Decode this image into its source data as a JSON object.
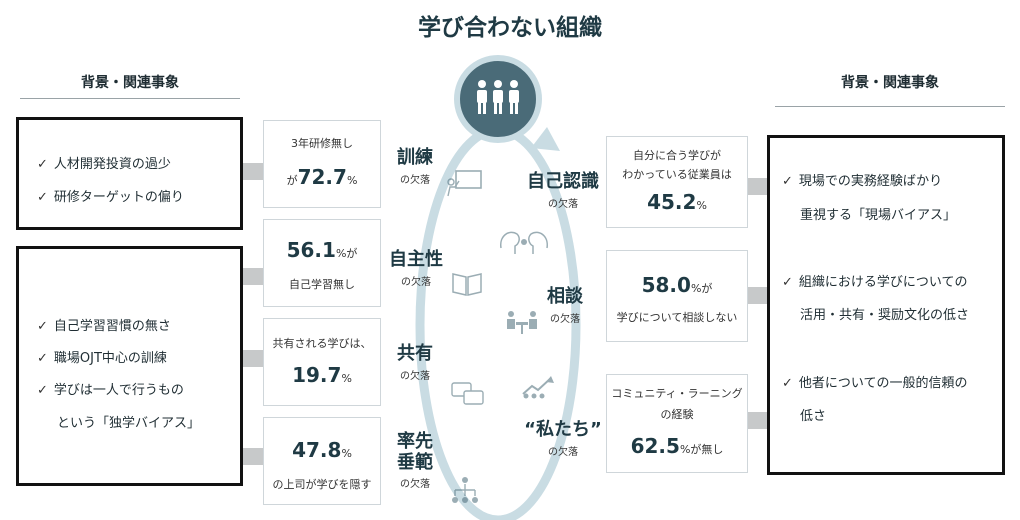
{
  "title": "学び合わない組織",
  "left_header": "背景・関連事象",
  "right_header": "背景・関連事象",
  "left_boxes": [
    {
      "items": [
        "人材開発投資の過少",
        "研修ターゲットの偏り"
      ]
    },
    {
      "items": [
        "自己学習習慣の無さ",
        "職場OJT中心の訓練",
        "学びは一人で行うもの",
        "という「独学バイアス」"
      ]
    }
  ],
  "right_box": {
    "items": [
      "現場での実務経験ばかり",
      "重視する「現場バイアス」",
      "組織における学びについての",
      "活用・共有・奨励文化の低さ",
      "他者についての一般的信頼の",
      "低さ"
    ]
  },
  "check_mark": "✓",
  "left_stats": [
    {
      "top": "3年研修無し",
      "pre": "が",
      "value": "72.7",
      "unit": "%"
    },
    {
      "value": "56.1",
      "unit": "%が",
      "bottom": "自己学習無し"
    },
    {
      "top": "共有される学びは、",
      "value": "19.7",
      "unit": "%"
    },
    {
      "value": "47.8",
      "unit": "%",
      "bottom": "の上司が学びを隠す"
    }
  ],
  "left_lacks": [
    {
      "name": "訓練",
      "sub": "の欠落",
      "icon": "presentation-icon"
    },
    {
      "name": "自主性",
      "sub": "の欠落",
      "icon": "book-icon"
    },
    {
      "name": "共有",
      "sub": "の欠落",
      "icon": "chat-bubbles-icon"
    },
    {
      "name1": "率先",
      "name2": "垂範",
      "sub": "の欠落",
      "icon": "hierarchy-icon"
    }
  ],
  "right_lacks": [
    {
      "name": "自己認識",
      "sub": "の欠落",
      "icon": "faces-icon"
    },
    {
      "name": "相談",
      "sub": "の欠落",
      "icon": "meeting-icon"
    },
    {
      "name": "“私たち”",
      "sub": "の欠落",
      "icon": "team-growth-icon"
    }
  ],
  "right_stats": [
    {
      "top1": "自分に合う学びが",
      "top2": "わかっている従業員は",
      "value": "45.2",
      "unit": "%"
    },
    {
      "value": "58.0",
      "unit": "%が",
      "bottom": "学びについて相談しない"
    },
    {
      "top1": "コミュニティ・ラーニング",
      "top2": "の経験",
      "value": "62.5",
      "unit": "%が無し"
    }
  ],
  "colors": {
    "accent": "#4a6b78",
    "cycle": "#c9dce3",
    "text": "#1f3a44"
  },
  "center_icon": "group-people-icon"
}
